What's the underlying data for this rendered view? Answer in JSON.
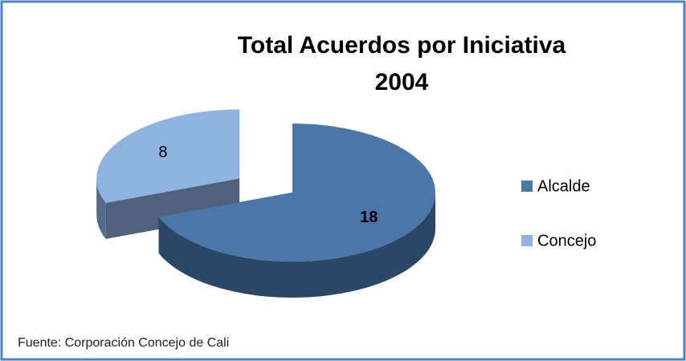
{
  "chart_data": {
    "type": "pie",
    "title": "Total Acuerdos por Iniciativa",
    "subtitle": "2004",
    "categories": [
      "Alcalde",
      "Concejo"
    ],
    "values": [
      18,
      8
    ],
    "colors": [
      "#4a76aa",
      "#8fb3e0"
    ],
    "legend": "right",
    "source": "Fuente: Corporación Concejo de Cali"
  }
}
